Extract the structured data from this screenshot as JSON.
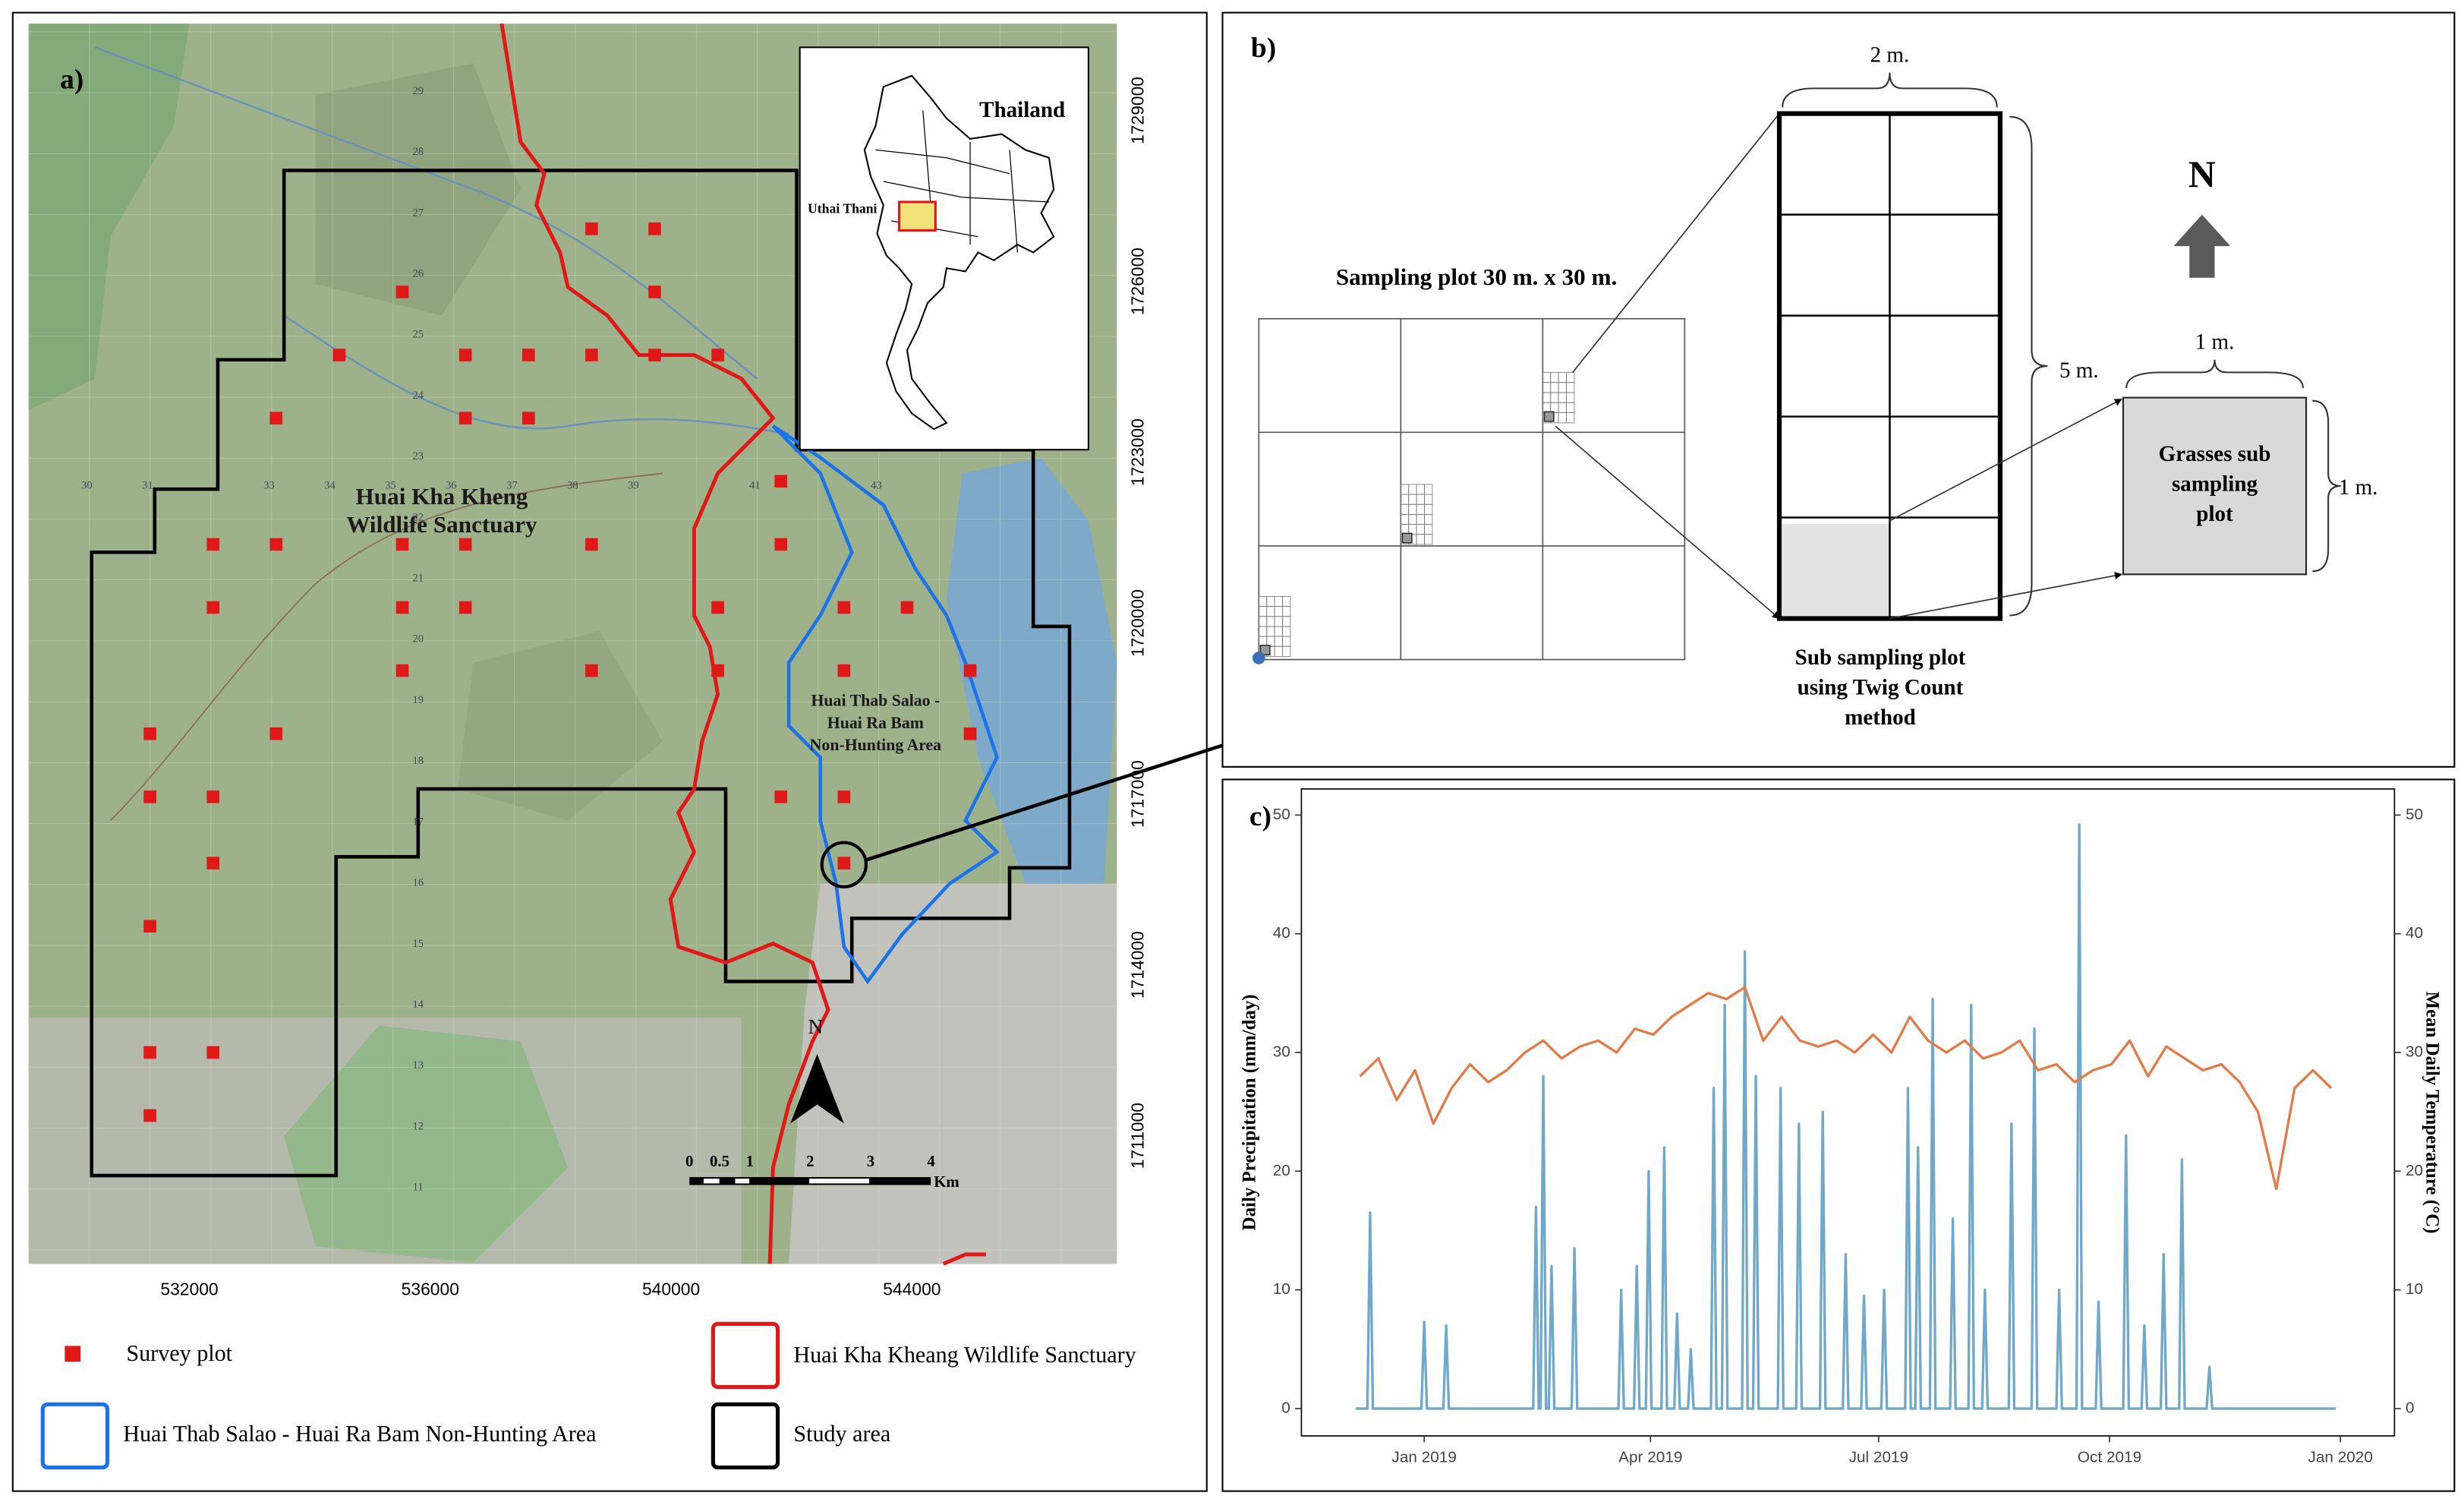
{
  "map": {
    "panel_label": "a)",
    "inset_title": "Thailand",
    "inset_province": "Uthai Thani",
    "sanctuary_label": [
      "Huai Kha Kheng",
      "Wildlife Sanctuary"
    ],
    "nonhunting_label": [
      "Huai Thab Salao -",
      "Huai Ra Bam",
      "Non-Hunting Area"
    ],
    "north": "N",
    "scale_labels": [
      "0",
      "0.5",
      "1",
      "2",
      "3",
      "4"
    ],
    "scale_unit": "Km",
    "easting_labels": [
      "532000",
      "536000",
      "540000",
      "544000"
    ],
    "northing_labels": [
      "1729000",
      "1726000",
      "1723000",
      "1720000",
      "1717000",
      "1714000",
      "1711000"
    ],
    "grid_rows": [
      "29",
      "28",
      "27",
      "26",
      "25",
      "24",
      "23",
      "22",
      "21",
      "20",
      "19",
      "18",
      "17",
      "16",
      "15",
      "14",
      "13",
      "12",
      "11"
    ],
    "grid_cols": [
      "30",
      "31",
      "33",
      "34",
      "35",
      "36",
      "37",
      "38",
      "39",
      "41",
      "43"
    ],
    "legend": [
      "Survey plot",
      "Huai Kha Kheang Wildlife Sanctuary",
      "Huai Thab Salao - Huai Ra Bam Non-Hunting Area",
      "Study area"
    ]
  },
  "diagram": {
    "panel_label": "b)",
    "plot_title": "Sampling plot 30 m. x 30 m.",
    "width_2m": "2 m.",
    "height_5m": "5 m.",
    "width_1m": "1 m.",
    "height_1m": "1 m.",
    "grass_label": [
      "Grasses sub",
      "sampling",
      "plot"
    ],
    "twig_label": [
      "Sub sampling plot",
      "using Twig Count",
      "method"
    ],
    "north": "N"
  },
  "chart_data": {
    "type": "line",
    "panel_label": "c)",
    "ylabel": "Daily Precipitation (mm/day)",
    "y2label": "Mean Daily Temperature (°C)",
    "xlim": [
      2018.866,
      2020.059
    ],
    "xticks": [
      {
        "value": 2019.0,
        "label": "Jan 2019"
      },
      {
        "value": 2019.247,
        "label": "Apr 2019"
      },
      {
        "value": 2019.496,
        "label": "Jul 2019"
      },
      {
        "value": 2019.748,
        "label": "Oct 2019"
      },
      {
        "value": 2020.0,
        "label": "Jan 2020"
      }
    ],
    "ylim": [
      -2.3,
      52.2
    ],
    "yticks": [
      0,
      10,
      20,
      30,
      40,
      50
    ],
    "y2lim": [
      -2.3,
      52.2
    ],
    "y2ticks": [
      0,
      10,
      20,
      30,
      40,
      50
    ],
    "series": [
      {
        "color": "#6fa8c8",
        "axis": "y",
        "x": [
          2018.925,
          2018.938,
          2018.941,
          2018.944,
          2018.997,
          2019.0,
          2019.003,
          2019.021,
          2019.024,
          2019.027,
          2019.119,
          2019.122,
          2019.125,
          2019.127,
          2019.13,
          2019.133,
          2019.136,
          2019.139,
          2019.142,
          2019.161,
          2019.164,
          2019.167,
          2019.212,
          2019.215,
          2019.218,
          2019.229,
          2019.232,
          2019.235,
          2019.242,
          2019.245,
          2019.248,
          2019.259,
          2019.262,
          2019.265,
          2019.273,
          2019.276,
          2019.279,
          2019.288,
          2019.291,
          2019.294,
          2019.313,
          2019.316,
          2019.319,
          2019.325,
          2019.328,
          2019.331,
          2019.347,
          2019.35,
          2019.353,
          2019.359,
          2019.362,
          2019.365,
          2019.386,
          2019.389,
          2019.392,
          2019.406,
          2019.409,
          2019.412,
          2019.432,
          2019.435,
          2019.438,
          2019.457,
          2019.46,
          2019.463,
          2019.477,
          2019.48,
          2019.483,
          2019.499,
          2019.502,
          2019.505,
          2019.525,
          2019.528,
          2019.531,
          2019.536,
          2019.539,
          2019.542,
          2019.552,
          2019.555,
          2019.558,
          2019.574,
          2019.577,
          2019.58,
          2019.594,
          2019.597,
          2019.6,
          2019.609,
          2019.612,
          2019.615,
          2019.638,
          2019.641,
          2019.644,
          2019.663,
          2019.666,
          2019.669,
          2019.69,
          2019.693,
          2019.696,
          2019.712,
          2019.715,
          2019.718,
          2019.733,
          2019.736,
          2019.739,
          2019.763,
          2019.766,
          2019.769,
          2019.783,
          2019.786,
          2019.789,
          2019.804,
          2019.807,
          2019.81,
          2019.824,
          2019.827,
          2019.83,
          2019.854,
          2019.857,
          2019.86,
          2019.995
        ],
        "values": [
          0,
          0,
          16.5,
          0,
          0,
          7.3,
          0,
          0,
          7,
          0,
          0,
          17,
          0,
          0,
          28,
          0,
          0,
          12,
          0,
          0,
          13.5,
          0,
          0,
          10,
          0,
          0,
          12,
          0,
          0,
          20,
          0,
          0,
          22,
          0,
          0,
          8,
          0,
          0,
          5,
          0,
          0,
          27,
          0,
          0,
          34,
          0,
          0,
          38.5,
          0,
          0,
          28,
          0,
          0,
          27,
          0,
          0,
          24,
          0,
          0,
          25,
          0,
          0,
          13,
          0,
          0,
          9.5,
          0,
          0,
          10,
          0,
          0,
          27,
          0,
          0,
          22,
          0,
          0,
          34.5,
          0,
          0,
          16,
          0,
          0,
          34,
          0,
          0,
          10,
          0,
          0,
          24,
          0,
          0,
          32,
          0,
          0,
          10,
          0,
          0,
          49.2,
          0,
          0,
          9,
          0,
          0,
          23,
          0,
          0,
          7,
          0,
          0,
          13,
          0,
          0,
          21,
          0,
          0,
          3.5,
          0,
          0
        ]
      },
      {
        "color": "#e07b4a",
        "axis": "y2",
        "x": [
          2018.93,
          2018.95,
          2018.97,
          2018.99,
          2019.01,
          2019.03,
          2019.05,
          2019.07,
          2019.09,
          2019.11,
          2019.13,
          2019.15,
          2019.17,
          2019.19,
          2019.21,
          2019.23,
          2019.25,
          2019.27,
          2019.29,
          2019.31,
          2019.33,
          2019.35,
          2019.37,
          2019.39,
          2019.41,
          2019.43,
          2019.45,
          2019.47,
          2019.49,
          2019.51,
          2019.53,
          2019.55,
          2019.57,
          2019.59,
          2019.61,
          2019.63,
          2019.65,
          2019.67,
          2019.69,
          2019.71,
          2019.73,
          2019.75,
          2019.77,
          2019.79,
          2019.81,
          2019.83,
          2019.85,
          2019.87,
          2019.89,
          2019.91,
          2019.93,
          2019.95,
          2019.97,
          2019.99
        ],
        "values": [
          28,
          29.5,
          26,
          28.5,
          24,
          27,
          29,
          27.5,
          28.5,
          30,
          31,
          29.5,
          30.5,
          31,
          30,
          32,
          31.5,
          33,
          34,
          35,
          34.5,
          35.5,
          31,
          33,
          31,
          30.5,
          31,
          30,
          31.5,
          30,
          33,
          31,
          30,
          31,
          29.5,
          30,
          31,
          28.5,
          29,
          27.5,
          28.5,
          29,
          31,
          28,
          30.5,
          29.5,
          28.5,
          29,
          27.5,
          25,
          18.5,
          27,
          28.5,
          27
        ]
      }
    ]
  }
}
